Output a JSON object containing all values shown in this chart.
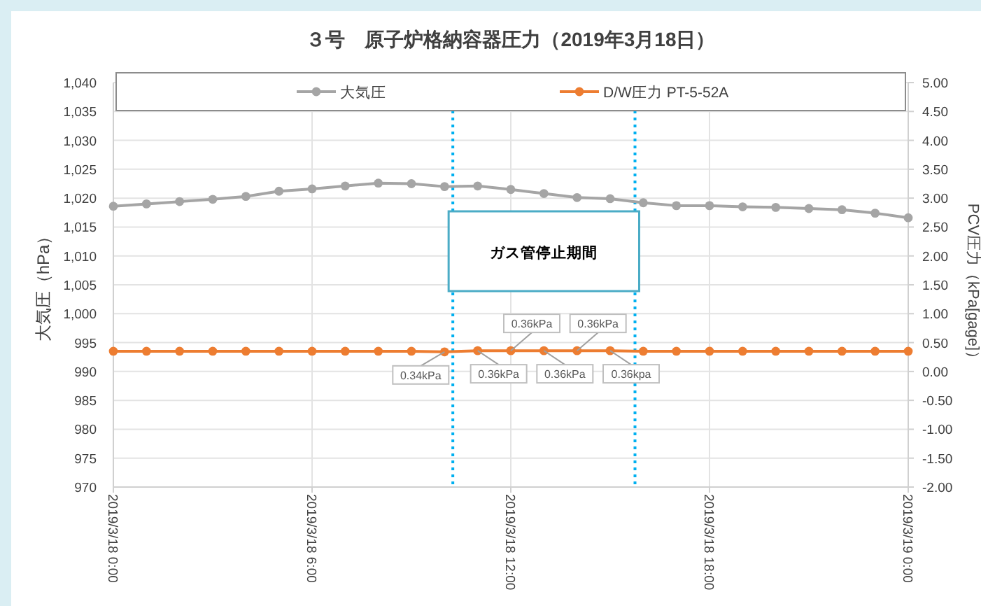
{
  "chart_data": {
    "type": "line",
    "title": "３号　原子炉格納容器圧力（2019年3月18日）",
    "ylabel": "大気圧（hPa）",
    "y2label": "PCV圧力（kPa[gage]）",
    "x": [
      "2019-03-18T00:00",
      "2019-03-18T01:00",
      "2019-03-18T02:00",
      "2019-03-18T03:00",
      "2019-03-18T04:00",
      "2019-03-18T05:00",
      "2019-03-18T06:00",
      "2019-03-18T07:00",
      "2019-03-18T08:00",
      "2019-03-18T09:00",
      "2019-03-18T10:00",
      "2019-03-18T11:00",
      "2019-03-18T12:00",
      "2019-03-18T13:00",
      "2019-03-18T14:00",
      "2019-03-18T15:00",
      "2019-03-18T16:00",
      "2019-03-18T17:00",
      "2019-03-18T18:00",
      "2019-03-18T19:00",
      "2019-03-18T20:00",
      "2019-03-18T21:00",
      "2019-03-18T22:00",
      "2019-03-18T23:00",
      "2019-03-19T00:00"
    ],
    "xlim": [
      "2019-03-18T00:00",
      "2019-03-19T00:00"
    ],
    "xticks": [
      {
        "value": "2019-03-18T00:00",
        "label": "2019/3/18 0:00"
      },
      {
        "value": "2019-03-18T06:00",
        "label": "2019/3/18 6:00"
      },
      {
        "value": "2019-03-18T12:00",
        "label": "2019/3/18 12:00"
      },
      {
        "value": "2019-03-18T18:00",
        "label": "2019/3/18 18:00"
      },
      {
        "value": "2019-03-19T00:00",
        "label": "2019/3/19 0:00"
      }
    ],
    "ylim": [
      970,
      1040
    ],
    "yticks": [
      {
        "value": 970,
        "label": "970"
      },
      {
        "value": 975,
        "label": "975"
      },
      {
        "value": 980,
        "label": "980"
      },
      {
        "value": 985,
        "label": "985"
      },
      {
        "value": 990,
        "label": "990"
      },
      {
        "value": 995,
        "label": "995"
      },
      {
        "value": 1000,
        "label": "1,000"
      },
      {
        "value": 1005,
        "label": "1,005"
      },
      {
        "value": 1010,
        "label": "1,010"
      },
      {
        "value": 1015,
        "label": "1,015"
      },
      {
        "value": 1020,
        "label": "1,020"
      },
      {
        "value": 1025,
        "label": "1,025"
      },
      {
        "value": 1030,
        "label": "1,030"
      },
      {
        "value": 1035,
        "label": "1,035"
      },
      {
        "value": 1040,
        "label": "1,040"
      }
    ],
    "y2lim": [
      -2,
      5
    ],
    "y2ticks": [
      {
        "value": -2,
        "label": "-2.00"
      },
      {
        "value": -1.5,
        "label": "-1.50"
      },
      {
        "value": -1,
        "label": "-1.00"
      },
      {
        "value": -0.5,
        "label": "-0.50"
      },
      {
        "value": 0,
        "label": "0.00"
      },
      {
        "value": 0.5,
        "label": "0.50"
      },
      {
        "value": 1,
        "label": "1.00"
      },
      {
        "value": 1.5,
        "label": "1.50"
      },
      {
        "value": 2,
        "label": "2.00"
      },
      {
        "value": 2.5,
        "label": "2.50"
      },
      {
        "value": 3,
        "label": "3.00"
      },
      {
        "value": 3.5,
        "label": "3.50"
      },
      {
        "value": 4,
        "label": "4.00"
      },
      {
        "value": 4.5,
        "label": "4.50"
      },
      {
        "value": 5,
        "label": "5.00"
      }
    ],
    "grid": true,
    "legend": "top",
    "marker": "circle",
    "line_style": "solid",
    "series": [
      {
        "name": "大気圧",
        "color": "#a5a5a5",
        "values": [
          1018.6,
          1019.0,
          1019.4,
          1019.8,
          1020.3,
          1021.2,
          1021.6,
          1022.1,
          1022.6,
          1022.5,
          1022.0,
          1022.1,
          1021.5,
          1020.8,
          1020.1,
          1019.9,
          1019.2,
          1018.7,
          1018.7,
          1018.5,
          1018.4,
          1018.2,
          1018.0,
          1017.4,
          1016.6
        ]
      },
      {
        "name": "D/W圧力 PT-5-52A",
        "color": "#ed7d31",
        "axis": "y2",
        "values": [
          0.35,
          0.35,
          0.35,
          0.35,
          0.35,
          0.35,
          0.35,
          0.35,
          0.35,
          0.35,
          0.34,
          0.36,
          0.36,
          0.36,
          0.36,
          0.36,
          0.35,
          0.35,
          0.35,
          0.35,
          0.35,
          0.35,
          0.35,
          0.35,
          0.35
        ],
        "value_labels": [
          null,
          null,
          null,
          null,
          null,
          null,
          null,
          null,
          null,
          null,
          "0.34kPa",
          "0.36kPa",
          "0.36kPa",
          "0.36kPa",
          "0.36kPa",
          "0.36kpa",
          null,
          null,
          null,
          null,
          null,
          null,
          null,
          null,
          null
        ]
      }
    ],
    "ref_lines": [
      {
        "axis": "x",
        "value": "2019-03-18T10:15",
        "color": "#00b0f0",
        "line_style": "dotted"
      },
      {
        "axis": "x",
        "value": "2019-03-18T15:45",
        "color": "#00b0f0",
        "line_style": "dotted"
      }
    ],
    "annotations": [
      "ガス管停止期間"
    ]
  }
}
